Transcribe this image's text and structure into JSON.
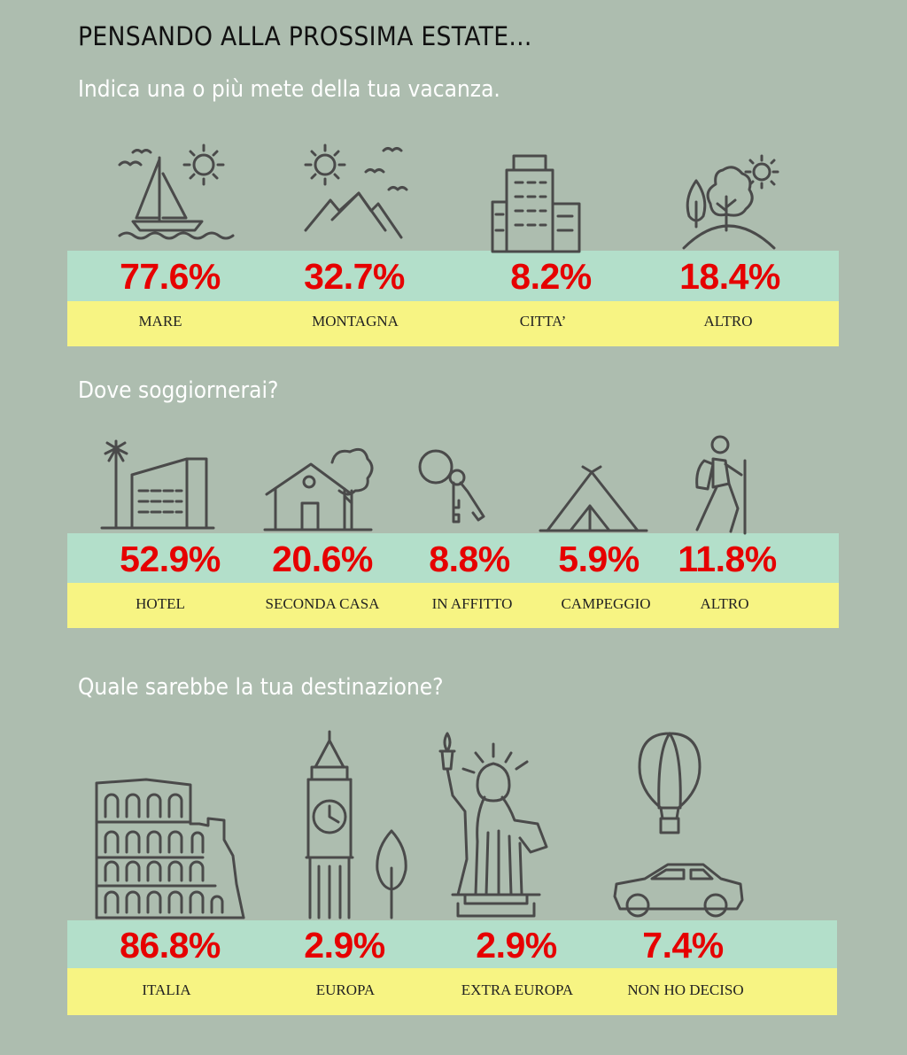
{
  "header": {
    "title": "PENSANDO ALLA PROSSIMA ESTATE..."
  },
  "sections": [
    {
      "question": "Indica una o più mete della tua vacanza.",
      "items": [
        {
          "value": "77.6%",
          "label": "MARE",
          "icon": "sailboat-icon"
        },
        {
          "value": "32.7%",
          "label": "MONTAGNA",
          "icon": "mountain-icon"
        },
        {
          "value": "8.2%",
          "label": "CITTA’",
          "icon": "building-icon"
        },
        {
          "value": "18.4%",
          "label": "ALTRO",
          "icon": "tree-hill-icon"
        }
      ]
    },
    {
      "question": "Dove soggiornerai?",
      "items": [
        {
          "value": "52.9%",
          "label": "HOTEL",
          "icon": "hotel-icon"
        },
        {
          "value": "20.6%",
          "label": "SECONDA CASA",
          "icon": "house-icon"
        },
        {
          "value": "8.8%",
          "label": "IN AFFITTO",
          "icon": "keys-icon"
        },
        {
          "value": "5.9%",
          "label": "CAMPEGGIO",
          "icon": "tent-icon"
        },
        {
          "value": "11.8%",
          "label": "ALTRO",
          "icon": "hiker-icon"
        }
      ]
    },
    {
      "question": "Quale sarebbe la tua destinazione?",
      "items": [
        {
          "value": "86.8%",
          "label": "ITALIA",
          "icon": "colosseum-icon"
        },
        {
          "value": "2.9%",
          "label": "EUROPA",
          "icon": "big-ben-icon"
        },
        {
          "value": "2.9%",
          "label": "EXTRA EUROPA",
          "icon": "statue-of-liberty-icon"
        },
        {
          "value": "7.4%",
          "label": "NON HO DECISO",
          "icon": "balloon-car-icon"
        }
      ]
    }
  ],
  "colors": {
    "background": "#adbdaf",
    "value_band": "#b3dfca",
    "label_band": "#f7f483",
    "value_text": "#e60000"
  }
}
